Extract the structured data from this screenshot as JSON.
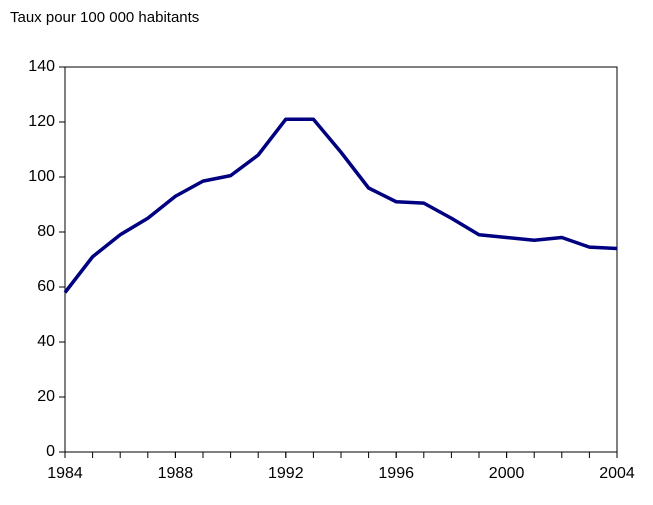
{
  "chart_data": {
    "type": "line",
    "y_label": "Taux pour 100 000 habitants",
    "x": [
      1984,
      1985,
      1986,
      1987,
      1988,
      1989,
      1990,
      1991,
      1992,
      1993,
      1994,
      1995,
      1996,
      1997,
      1998,
      1999,
      2000,
      2001,
      2002,
      2003,
      2004
    ],
    "series": [
      {
        "color": "#000080",
        "values": [
          58,
          71,
          79,
          85,
          93,
          98.5,
          100.5,
          108,
          121,
          121,
          109,
          96,
          91,
          90.5,
          85,
          79,
          78,
          77,
          78,
          74.5,
          74
        ]
      }
    ],
    "xlim": [
      1984,
      2004
    ],
    "xticks": [
      1984,
      1988,
      1992,
      1996,
      2000,
      2004
    ],
    "ylim": [
      0,
      140
    ],
    "yticks": [
      0,
      20,
      40,
      60,
      80,
      100,
      120,
      140
    ],
    "grid": false
  }
}
